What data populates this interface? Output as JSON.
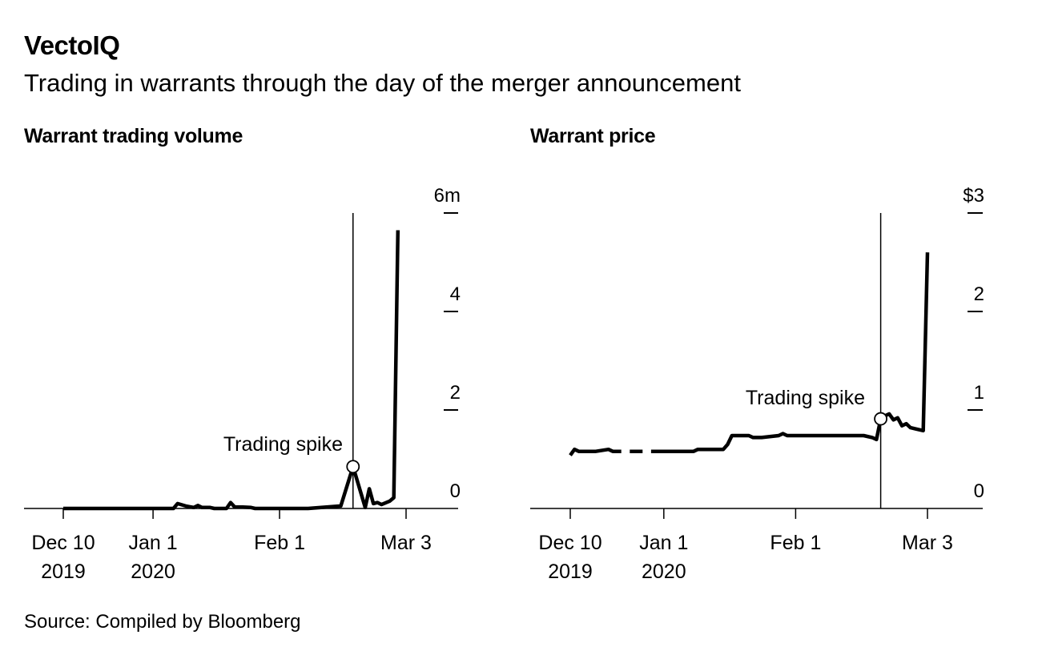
{
  "header": {
    "title": "VectoIQ",
    "subtitle": "Trading in warrants through the day of the merger announcement"
  },
  "footer": {
    "source": "Source: Compiled by Bloomberg"
  },
  "colors": {
    "line": "#000000",
    "axis": "#000000",
    "marker_fill": "#ffffff"
  },
  "chart_data": [
    {
      "type": "line",
      "title": "Warrant trading volume",
      "xlabel": "",
      "ylabel": "",
      "x_domain": [
        0,
        84
      ],
      "ylim": [
        0,
        6
      ],
      "y_ticks": [
        0,
        2,
        4,
        6
      ],
      "y_tick_labels": [
        "0",
        "2",
        "4",
        "6m"
      ],
      "x_ticks": [
        {
          "x": 0,
          "line1": "Dec 10",
          "line2": "2019"
        },
        {
          "x": 22,
          "line1": "Jan 1",
          "line2": "2020"
        },
        {
          "x": 53,
          "line1": "Feb 1",
          "line2": ""
        },
        {
          "x": 84,
          "line1": "Mar 3",
          "line2": ""
        }
      ],
      "annotation": {
        "label": "Trading spike",
        "x": 71,
        "y": 0.85
      },
      "series": [
        {
          "name": "Warrant trading volume",
          "segments": [
            [
              [
                0,
                0
              ],
              [
                27,
                0
              ],
              [
                28,
                0.1
              ],
              [
                30,
                0.05
              ],
              [
                32,
                0.02
              ],
              [
                33,
                0.06
              ],
              [
                34,
                0.02
              ],
              [
                36,
                0.02
              ],
              [
                37,
                0
              ],
              [
                40,
                0
              ],
              [
                41,
                0.12
              ],
              [
                42,
                0.03
              ],
              [
                44,
                0.03
              ],
              [
                46,
                0.02
              ],
              [
                47,
                0
              ],
              [
                60,
                0
              ],
              [
                68,
                0.05
              ],
              [
                71,
                0.85
              ],
              [
                74,
                0.02
              ],
              [
                75,
                0.4
              ],
              [
                76,
                0.1
              ],
              [
                77,
                0.12
              ],
              [
                78,
                0.08
              ],
              [
                80,
                0.15
              ],
              [
                81,
                0.22
              ],
              [
                82,
                5.65
              ]
            ]
          ]
        }
      ]
    },
    {
      "type": "line",
      "title": "Warrant price",
      "xlabel": "",
      "ylabel": "",
      "x_domain": [
        0,
        84
      ],
      "ylim": [
        0,
        3
      ],
      "y_ticks": [
        0,
        1,
        2,
        3
      ],
      "y_tick_labels": [
        "0",
        "1",
        "2",
        "$3"
      ],
      "x_ticks": [
        {
          "x": 0,
          "line1": "Dec 10",
          "line2": "2019"
        },
        {
          "x": 22,
          "line1": "Jan 1",
          "line2": "2020"
        },
        {
          "x": 53,
          "line1": "Feb 1",
          "line2": ""
        },
        {
          "x": 84,
          "line1": "Mar 3",
          "line2": ""
        }
      ],
      "annotation": {
        "label": "Trading spike",
        "x": 73,
        "y": 0.91
      },
      "series": [
        {
          "name": "Warrant price",
          "segments": [
            [
              [
                0,
                0.54
              ],
              [
                1,
                0.6
              ],
              [
                2,
                0.58
              ],
              [
                6,
                0.58
              ],
              [
                9,
                0.6
              ],
              [
                10,
                0.58
              ],
              [
                12,
                0.58
              ]
            ],
            [
              [
                14,
                0.58
              ],
              [
                17,
                0.58
              ]
            ],
            [
              [
                19,
                0.58
              ],
              [
                29,
                0.58
              ],
              [
                30,
                0.6
              ],
              [
                36,
                0.6
              ],
              [
                37,
                0.65
              ],
              [
                38,
                0.74
              ],
              [
                42,
                0.74
              ],
              [
                43,
                0.72
              ],
              [
                45,
                0.72
              ],
              [
                49,
                0.74
              ],
              [
                50,
                0.76
              ],
              [
                51,
                0.74
              ],
              [
                69,
                0.74
              ],
              [
                71,
                0.72
              ],
              [
                72,
                0.7
              ],
              [
                73,
                0.91
              ],
              [
                74,
                0.94
              ],
              [
                75,
                0.96
              ],
              [
                76,
                0.9
              ],
              [
                77,
                0.92
              ],
              [
                78,
                0.84
              ],
              [
                79,
                0.86
              ],
              [
                80,
                0.82
              ],
              [
                83,
                0.79
              ],
              [
                84,
                2.6
              ]
            ]
          ]
        }
      ]
    }
  ]
}
